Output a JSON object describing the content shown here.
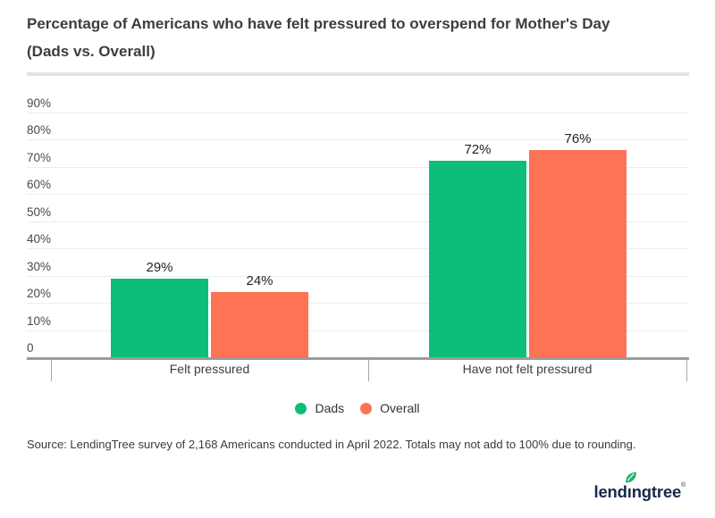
{
  "header": {
    "title_line1": "Percentage of Americans who have felt pressured to overspend for Mother's Day",
    "title_line2": "(Dads vs. Overall)"
  },
  "chart_data": {
    "type": "bar",
    "title": "Percentage of Americans who have felt pressured to overspend for Mother's Day (Dads vs. Overall)",
    "categories": [
      "Felt pressured",
      "Have not felt pressured"
    ],
    "series": [
      {
        "name": "Dads",
        "color": "#0dbe7a",
        "values": [
          29,
          72
        ]
      },
      {
        "name": "Overall",
        "color": "#fc7356",
        "values": [
          24,
          76
        ]
      }
    ],
    "unit": "%",
    "xlabel": "",
    "ylabel": "",
    "ylim": [
      0,
      90
    ],
    "y_ticks": [
      "90%",
      "80%",
      "70%",
      "60%",
      "50%",
      "40%",
      "30%",
      "20%",
      "10%",
      "0"
    ],
    "y_tick_values": [
      90,
      80,
      70,
      60,
      50,
      40,
      30,
      20,
      10,
      0
    ],
    "grid": "horizontal-light",
    "legend_position": "bottom-center"
  },
  "footer": {
    "source": "Source: LendingTree survey of 2,168 Americans conducted in April 2022. Totals may not add to 100% due to rounding.",
    "logo_text": "lendingtree",
    "logo_mark": "®"
  },
  "colors": {
    "dads_green": "#0dbe7a",
    "overall_orange": "#fc7356",
    "logo_navy": "#16284a",
    "leaf_green": "#23b26e",
    "gridline": "#ededed",
    "axis": "#9b9b9b"
  }
}
